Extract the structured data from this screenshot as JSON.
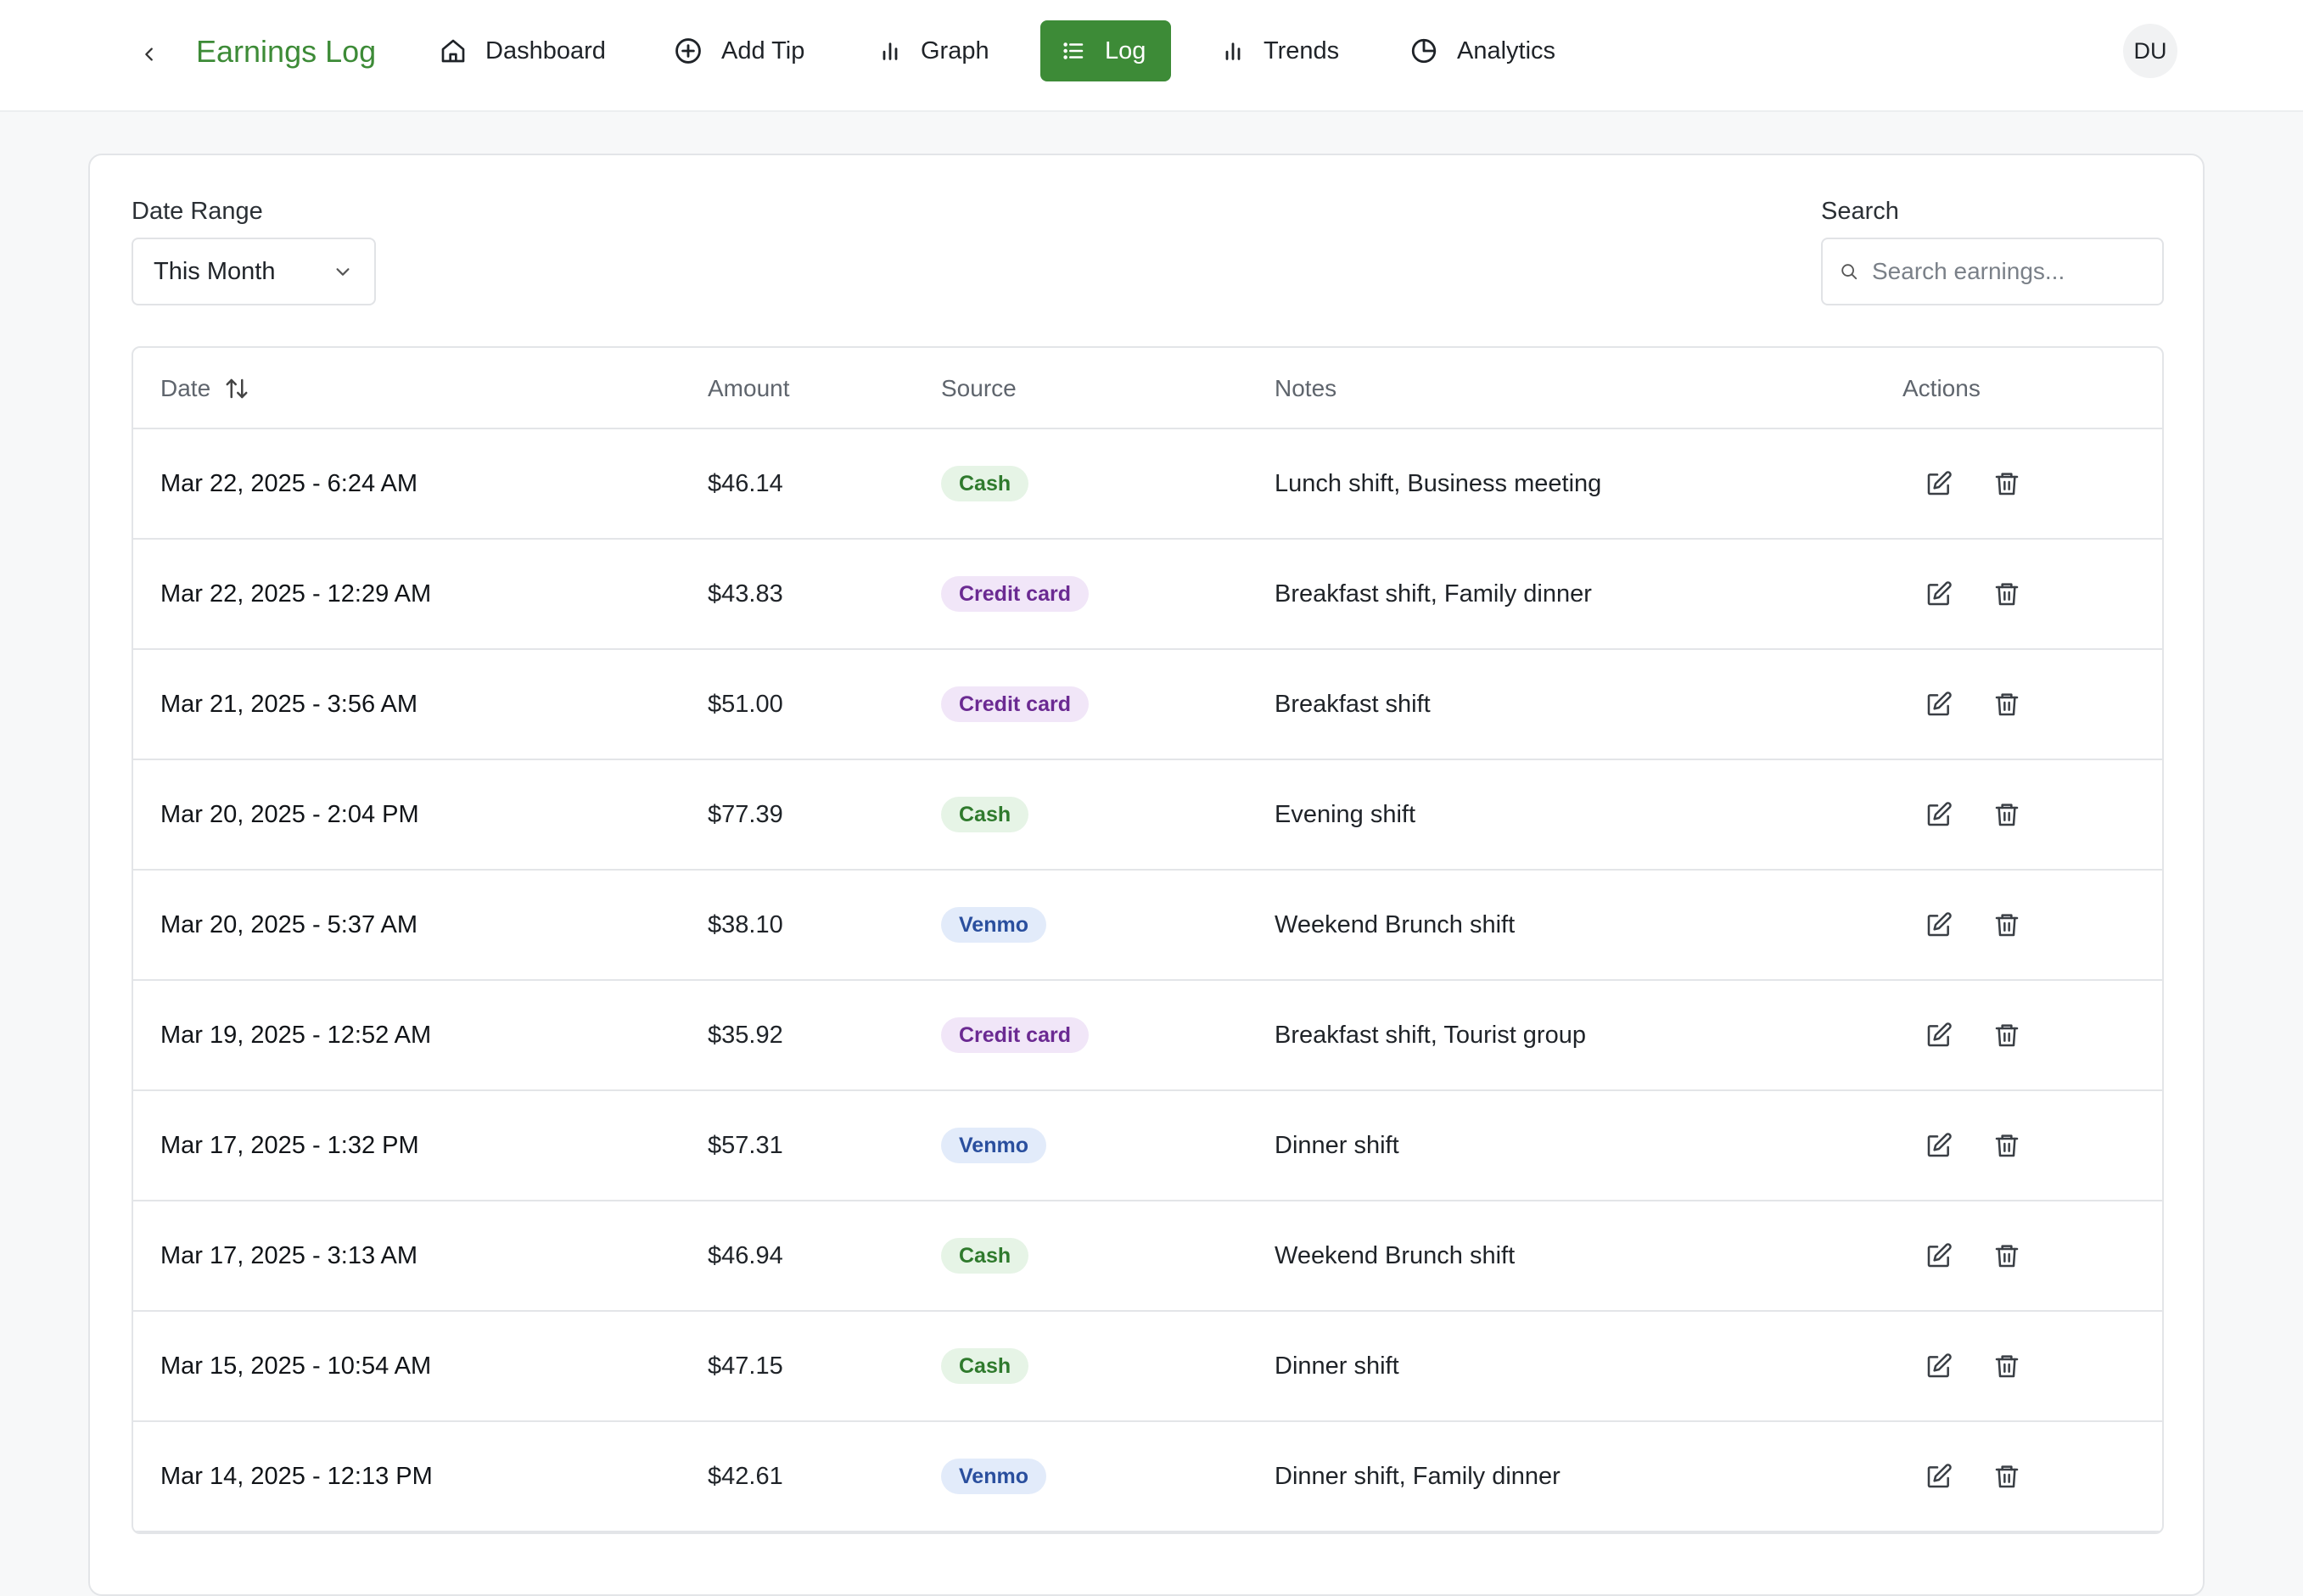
{
  "header": {
    "title": "Earnings Log",
    "nav": [
      {
        "label": "Dashboard",
        "icon": "home-icon"
      },
      {
        "label": "Add Tip",
        "icon": "plus-circle-icon"
      },
      {
        "label": "Graph",
        "icon": "bar-chart-icon"
      },
      {
        "label": "Log",
        "icon": "list-icon",
        "active": true
      },
      {
        "label": "Trends",
        "icon": "bar-chart-icon"
      },
      {
        "label": "Analytics",
        "icon": "pie-chart-icon"
      }
    ],
    "avatar_initials": "DU"
  },
  "filters": {
    "date_range_label": "Date Range",
    "date_range_value": "This Month",
    "search_label": "Search",
    "search_placeholder": "Search earnings..."
  },
  "table": {
    "columns": [
      "Date",
      "Amount",
      "Source",
      "Notes",
      "Actions"
    ],
    "rows": [
      {
        "date": "Mar 22, 2025 - 6:24 AM",
        "amount": "$46.14",
        "source": "Cash",
        "notes": "Lunch shift, Business meeting"
      },
      {
        "date": "Mar 22, 2025 - 12:29 AM",
        "amount": "$43.83",
        "source": "Credit card",
        "notes": "Breakfast shift, Family dinner"
      },
      {
        "date": "Mar 21, 2025 - 3:56 AM",
        "amount": "$51.00",
        "source": "Credit card",
        "notes": "Breakfast shift"
      },
      {
        "date": "Mar 20, 2025 - 2:04 PM",
        "amount": "$77.39",
        "source": "Cash",
        "notes": "Evening shift"
      },
      {
        "date": "Mar 20, 2025 - 5:37 AM",
        "amount": "$38.10",
        "source": "Venmo",
        "notes": "Weekend Brunch shift"
      },
      {
        "date": "Mar 19, 2025 - 12:52 AM",
        "amount": "$35.92",
        "source": "Credit card",
        "notes": "Breakfast shift, Tourist group"
      },
      {
        "date": "Mar 17, 2025 - 1:32 PM",
        "amount": "$57.31",
        "source": "Venmo",
        "notes": "Dinner shift"
      },
      {
        "date": "Mar 17, 2025 - 3:13 AM",
        "amount": "$46.94",
        "source": "Cash",
        "notes": "Weekend Brunch shift"
      },
      {
        "date": "Mar 15, 2025 - 10:54 AM",
        "amount": "$47.15",
        "source": "Cash",
        "notes": "Dinner shift"
      },
      {
        "date": "Mar 14, 2025 - 12:13 PM",
        "amount": "$42.61",
        "source": "Venmo",
        "notes": "Dinner shift, Family dinner"
      }
    ]
  },
  "colors": {
    "accent": "#3d8b37",
    "cash_badge": "#e6f4e6",
    "credit_badge": "#f1e6f8",
    "venmo_badge": "#e2ebfa"
  }
}
